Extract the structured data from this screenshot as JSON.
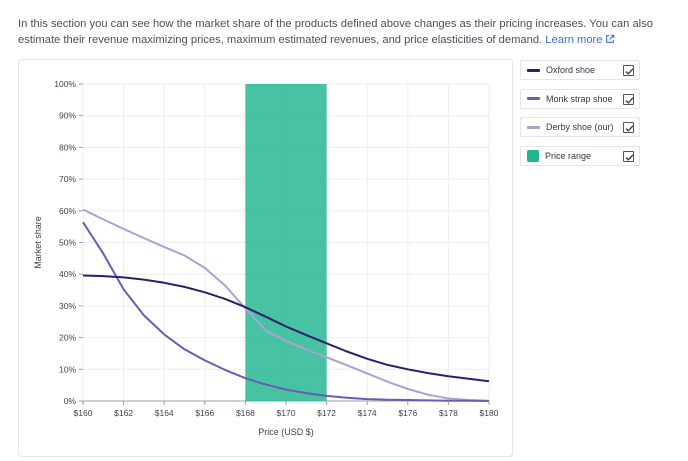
{
  "intro": {
    "text": "In this section you can see how the market share of the products defined above changes as their pricing increases. You can also estimate their revenue maximizing prices, maximum estimated revenues, and price elasticities of demand.",
    "learn_more": "Learn more"
  },
  "legend": [
    {
      "label": "Oxford shoe",
      "color": "#2b1f6b",
      "kind": "line",
      "checked": true
    },
    {
      "label": "Monk strap shoe",
      "color": "#6a5cb3",
      "kind": "line",
      "checked": true
    },
    {
      "label": "Derby shoe (our)",
      "color": "#a9a2d6",
      "kind": "line",
      "checked": true
    },
    {
      "label": "Price range",
      "color": "#1fb68f",
      "kind": "box",
      "checked": true
    }
  ],
  "chart_data": {
    "type": "line",
    "xlabel": "Price (USD $)",
    "ylabel": "Market share",
    "xlim": [
      160,
      180
    ],
    "ylim": [
      0,
      100
    ],
    "x_ticks": [
      "$160",
      "$162",
      "$164",
      "$166",
      "$168",
      "$170",
      "$172",
      "$174",
      "$176",
      "$178",
      "$180"
    ],
    "y_ticks": [
      "0%",
      "10%",
      "20%",
      "30%",
      "40%",
      "50%",
      "60%",
      "70%",
      "80%",
      "90%",
      "100%"
    ],
    "grid": true,
    "price_range": {
      "from": 168,
      "to": 172,
      "color": "#1fb68f"
    },
    "series": [
      {
        "name": "Oxford shoe",
        "color": "#2b1f6b",
        "x": [
          160,
          161,
          162,
          163,
          164,
          165,
          166,
          167,
          168,
          169,
          170,
          171,
          172,
          173,
          174,
          175,
          176,
          177,
          178,
          179,
          180
        ],
        "values": [
          39.6,
          39.4,
          39,
          38.3,
          37.3,
          36,
          34.3,
          32.2,
          29.6,
          26.6,
          23.5,
          20.8,
          18.2,
          15.6,
          13.3,
          11.4,
          10,
          8.8,
          7.8,
          7,
          6.2
        ]
      },
      {
        "name": "Monk strap shoe",
        "color": "#6a5cb3",
        "x": [
          160,
          161,
          162,
          163,
          164,
          165,
          166,
          167,
          168,
          169,
          170,
          171,
          172,
          173,
          174,
          175,
          176,
          177,
          178,
          179,
          180
        ],
        "values": [
          56.4,
          46.5,
          35.2,
          27,
          21,
          16.3,
          12.8,
          9.8,
          7.2,
          5.2,
          3.6,
          2.5,
          1.6,
          1,
          0.6,
          0.4,
          0.3,
          0.2,
          0.1,
          0.1,
          0
        ]
      },
      {
        "name": "Derby shoe (our)",
        "color": "#a9a2d6",
        "x": [
          160,
          161,
          162,
          163,
          164,
          165,
          166,
          167,
          168,
          169,
          170,
          171,
          172,
          173,
          174,
          175,
          176,
          177,
          178,
          179,
          180
        ],
        "values": [
          60.4,
          57.3,
          54.3,
          51.4,
          48.6,
          45.9,
          42,
          36.4,
          29.2,
          22.2,
          19,
          16.2,
          13.8,
          11.3,
          8.7,
          6.1,
          3.8,
          2,
          0.8,
          0.3,
          0.1
        ]
      }
    ]
  }
}
